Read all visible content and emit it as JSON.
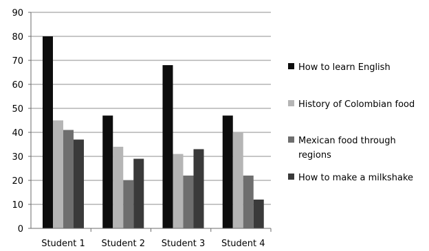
{
  "chart_data": {
    "type": "bar",
    "categories": [
      "Student 1",
      "Student 2",
      "Student 3",
      "Student 4"
    ],
    "series": [
      {
        "name": "How to learn English",
        "values": [
          80,
          47,
          68,
          47
        ],
        "color": "#0d0d0d"
      },
      {
        "name": "History of Colombian food",
        "values": [
          45,
          34,
          31,
          40
        ],
        "color": "#b5b5b5"
      },
      {
        "name": "Mexican food through regions",
        "values": [
          41,
          20,
          22,
          22
        ],
        "color": "#6e6e6e"
      },
      {
        "name": "How to make a milkshake",
        "values": [
          37,
          29,
          33,
          12
        ],
        "color": "#3a3a3a"
      }
    ],
    "legend_lines": [
      [
        "How to learn English"
      ],
      [
        "History of Colombian food"
      ],
      [
        "Mexican food through",
        "regions"
      ],
      [
        "How to make a milkshake"
      ]
    ],
    "ylim": [
      0,
      90
    ],
    "yticks": [
      0,
      10,
      20,
      30,
      40,
      50,
      60,
      70,
      80,
      90
    ],
    "grid": true,
    "legend_position": "right"
  }
}
